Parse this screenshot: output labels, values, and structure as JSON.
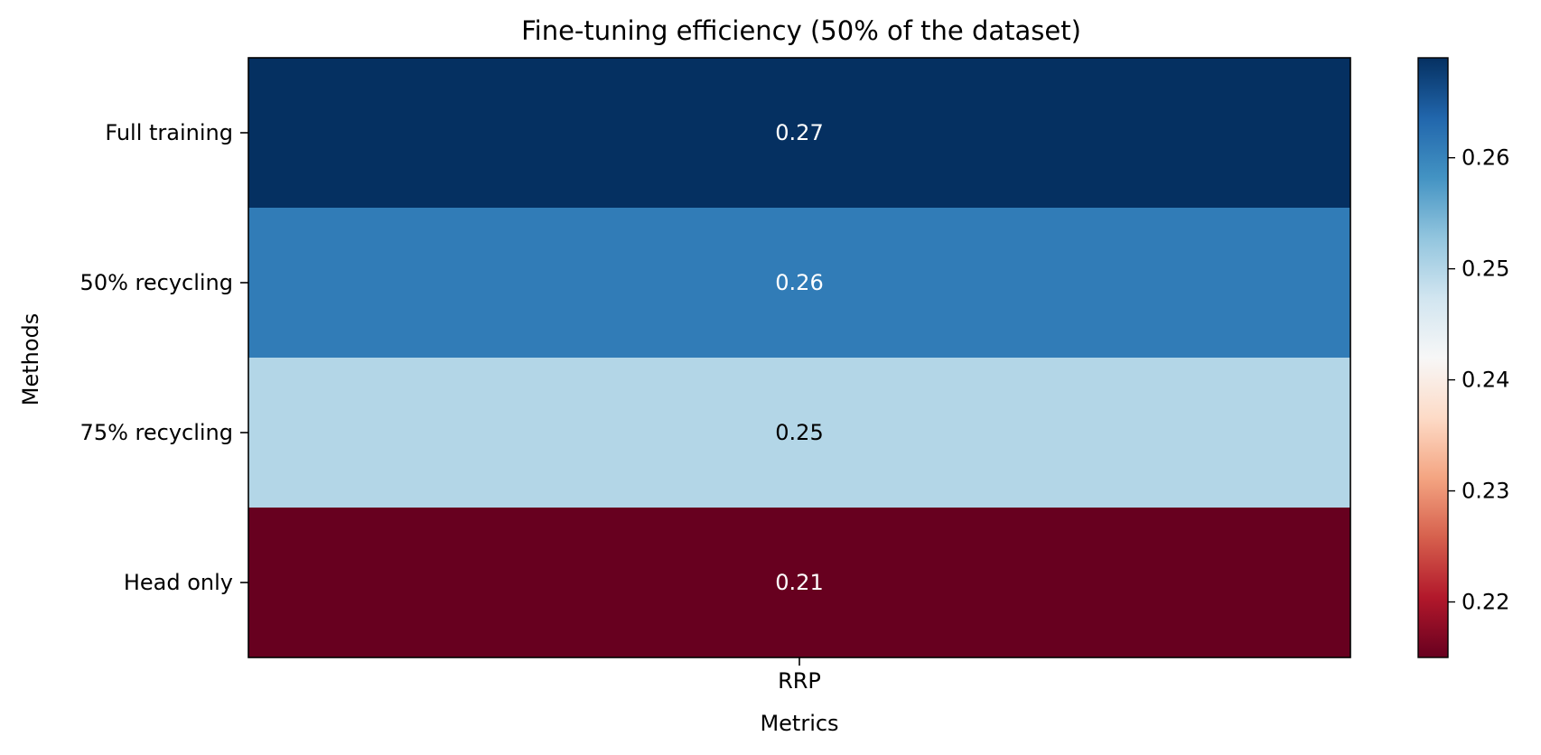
{
  "chart_data": {
    "type": "heatmap",
    "title": "Fine-tuning efficiency (50% of the dataset)",
    "xlabel": "Metrics",
    "ylabel": "Methods",
    "columns": [
      "RRP"
    ],
    "rows": [
      "Full training",
      "50% recycling",
      "75% recycling",
      "Head only"
    ],
    "values": [
      [
        0.269
      ],
      [
        0.261
      ],
      [
        0.25
      ],
      [
        0.215
      ]
    ],
    "cell_labels": [
      [
        "0.27"
      ],
      [
        "0.26"
      ],
      [
        "0.25"
      ],
      [
        "0.21"
      ]
    ],
    "cell_label_colors": [
      [
        "#ffffff"
      ],
      [
        "#ffffff"
      ],
      [
        "#000000"
      ],
      [
        "#ffffff"
      ]
    ],
    "colormap": "RdBu",
    "vmin": 0.215,
    "vmax": 0.269,
    "colorbar": {
      "ticks": [
        0.22,
        0.23,
        0.24,
        0.25,
        0.26
      ],
      "tick_labels": [
        "0.22",
        "0.23",
        "0.24",
        "0.25",
        "0.26"
      ]
    },
    "grid": false,
    "legend": "colorbar-right"
  }
}
